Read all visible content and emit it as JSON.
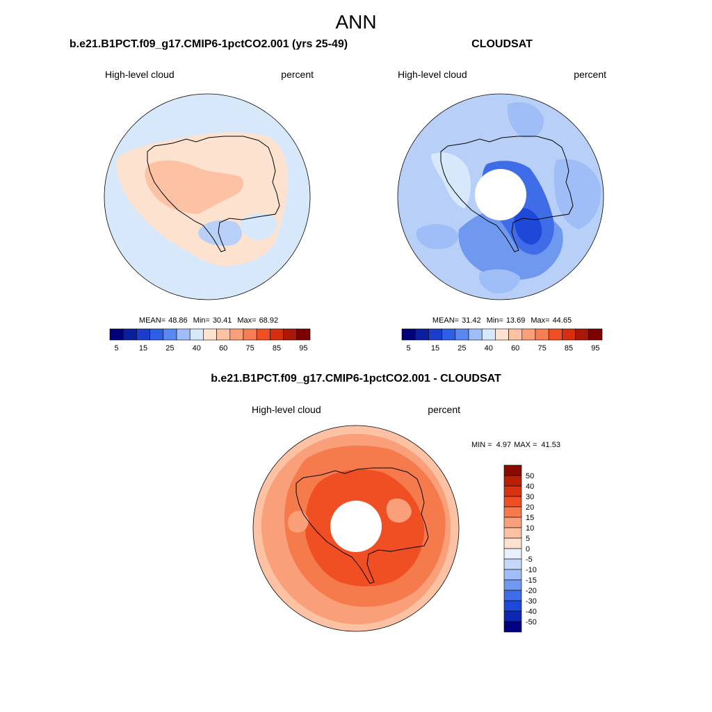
{
  "page": {
    "title": "ANN"
  },
  "chart_data": [
    {
      "type": "heatmap",
      "projection": "south-polar-stereographic",
      "title": "b.e21.B1PCT.f09_g17.CMIP6-1pctCO2.001 (yrs 25-49)",
      "left_label": "High-level cloud",
      "right_label": "percent",
      "stats": {
        "mean_label": "MEAN=",
        "mean": "48.86",
        "min_label": "Min=",
        "min": "30.41",
        "max_label": "Max=",
        "max": "68.92"
      },
      "colorbar": {
        "orientation": "horizontal",
        "tick_labels": [
          "5",
          "15",
          "25",
          "40",
          "60",
          "75",
          "85",
          "95"
        ],
        "colors": [
          "#000078",
          "#0a1e9e",
          "#1a3ec9",
          "#2e5ee6",
          "#5a88f0",
          "#9fbdf7",
          "#d8e8fb",
          "#fde2cf",
          "#fcc2a3",
          "#f9a07a",
          "#f57e55",
          "#f04e23",
          "#d43010",
          "#a81808",
          "#7c0000"
        ]
      }
    },
    {
      "type": "heatmap",
      "projection": "south-polar-stereographic",
      "title": "CLOUDSAT",
      "left_label": "High-level cloud",
      "right_label": "percent",
      "stats": {
        "mean_label": "MEAN=",
        "mean": "31.42",
        "min_label": "Min=",
        "min": "13.69",
        "max_label": "Max=",
        "max": "44.65"
      },
      "colorbar": {
        "orientation": "horizontal",
        "tick_labels": [
          "5",
          "15",
          "25",
          "40",
          "60",
          "75",
          "85",
          "95"
        ],
        "colors": [
          "#000078",
          "#0a1e9e",
          "#1a3ec9",
          "#2e5ee6",
          "#5a88f0",
          "#9fbdf7",
          "#d8e8fb",
          "#fde2cf",
          "#fcc2a3",
          "#f9a07a",
          "#f57e55",
          "#f04e23",
          "#d43010",
          "#a81808",
          "#7c0000"
        ]
      }
    },
    {
      "type": "heatmap",
      "projection": "south-polar-stereographic",
      "title": "b.e21.B1PCT.f09_g17.CMIP6-1pctCO2.001 - CLOUDSAT",
      "left_label": "High-level cloud",
      "right_label": "percent",
      "stats": {
        "min_label": "MIN =",
        "min": "4.97",
        "max_label": "MAX =",
        "max": "41.53"
      },
      "colorbar": {
        "orientation": "vertical",
        "tick_labels": [
          "50",
          "40",
          "30",
          "20",
          "15",
          "10",
          "5",
          "0",
          "-5",
          "-10",
          "-15",
          "-20",
          "-30",
          "-40",
          "-50"
        ],
        "colors": [
          "#8b0a00",
          "#b82005",
          "#d63410",
          "#f04e23",
          "#f57a4c",
          "#f9a07a",
          "#fcc2a3",
          "#fde2cf",
          "#e8f0fc",
          "#c4d8f8",
          "#9fbdf7",
          "#6f98ef",
          "#3f6de8",
          "#1e48d8",
          "#0c28b0",
          "#000080"
        ]
      }
    }
  ]
}
